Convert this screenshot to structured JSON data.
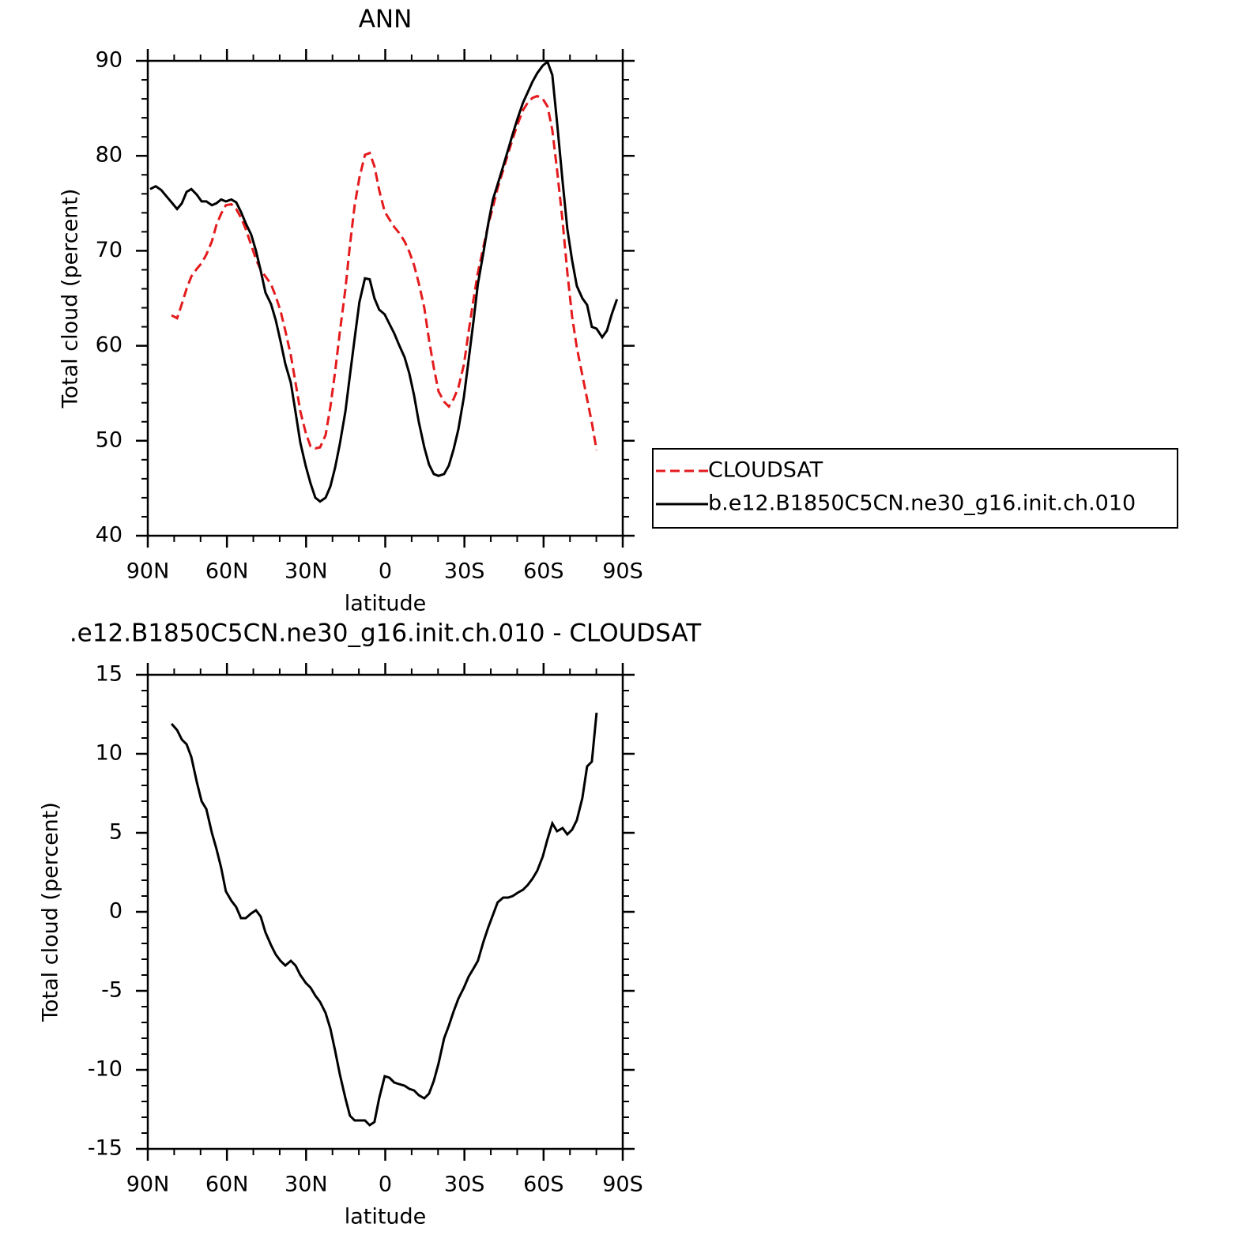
{
  "chart_data": [
    {
      "type": "line",
      "title": "ANN",
      "x_label": "latitude",
      "y_label": "Total cloud (percent)",
      "xlim": [
        90,
        -90
      ],
      "ylim": [
        40,
        90
      ],
      "xticks": [
        {
          "value": 90,
          "label": "90N"
        },
        {
          "value": 60,
          "label": "60N"
        },
        {
          "value": 30,
          "label": "30N"
        },
        0,
        {
          "value": -30,
          "label": "30S"
        },
        {
          "value": -60,
          "label": "60S"
        },
        {
          "value": -90,
          "label": "90S"
        }
      ],
      "yticks": [
        40,
        50,
        60,
        70,
        80,
        90
      ],
      "x_minor_step": 10,
      "y_minor_step": 2,
      "legend": "outside right",
      "series": [
        {
          "name": "CLOUDSAT",
          "color": "#e41a1c",
          "line_style": "dashed",
          "x": [
            81,
            78.9,
            77.1,
            75.3,
            73.5,
            71.4,
            69.6,
            67.8,
            65.7,
            64,
            62.2,
            60.4,
            58.3,
            56.5,
            54.7,
            52.9,
            50.8,
            49,
            47.2,
            45.4,
            43.3,
            41.5,
            39.7,
            37.9,
            35.8,
            34,
            32.2,
            30.1,
            28.3,
            26.5,
            24.7,
            22.6,
            20.8,
            19,
            17.2,
            15.1,
            13.4,
            11.6,
            9.8,
            7.7,
            5.9,
            4.1,
            2.3,
            0.2,
            -1.6,
            -3.4,
            -5.2,
            -7.3,
            -9.1,
            -10.9,
            -12.7,
            -14.8,
            -16.6,
            -18.4,
            -20.2,
            -22.3,
            -24.1,
            -25.9,
            -27.7,
            -29.8,
            -31.6,
            -33.4,
            -35.1,
            -37.2,
            -39,
            -40.8,
            -42.6,
            -44.7,
            -46.5,
            -48.3,
            -50.1,
            -52.2,
            -54,
            -55.8,
            -57.6,
            -59.7,
            -61.5,
            -63.3,
            -65.1,
            -67.2,
            -69,
            -70.8,
            -72.6,
            -74.7,
            -76.5,
            -78.3,
            -80.1
          ],
          "values": [
            63.2,
            62.9,
            64.4,
            66,
            67.3,
            68.1,
            68.7,
            69.6,
            71,
            72.7,
            73.9,
            74.8,
            74.9,
            74.4,
            73.5,
            72.3,
            70.6,
            69.1,
            68,
            67.3,
            66.5,
            65.2,
            63.7,
            61.6,
            59,
            56.1,
            53.1,
            50.8,
            49.4,
            49.2,
            49.3,
            50.6,
            53.6,
            57.3,
            61.5,
            66,
            70.6,
            74.8,
            77.7,
            80.1,
            80.3,
            78.9,
            76.4,
            74.1,
            73.3,
            72.5,
            71.9,
            71,
            69.9,
            68.5,
            66.6,
            64,
            60.6,
            57.7,
            55.2,
            54.1,
            53.6,
            54.4,
            55.6,
            58,
            61.5,
            64.8,
            67.7,
            70.4,
            72.7,
            74.6,
            76.6,
            78.5,
            80.2,
            81.8,
            83.3,
            84.8,
            85.6,
            86.1,
            86.3,
            86,
            85.2,
            82.7,
            78.5,
            73.1,
            67.7,
            63.1,
            59.8,
            56.9,
            54.4,
            51.9,
            49
          ]
        },
        {
          "name": "b.e12.B1850C5CN.ne30_g16.init.ch.010",
          "color": "#000000",
          "line_style": "solid",
          "x": [
            89.1,
            87,
            84.9,
            83.1,
            81,
            78.9,
            77.1,
            75.3,
            73.5,
            71.4,
            69.6,
            67.8,
            65.7,
            64,
            62.2,
            60.4,
            58.3,
            56.5,
            54.7,
            52.9,
            50.8,
            49,
            47.2,
            45.4,
            43.3,
            41.5,
            39.7,
            37.9,
            35.8,
            34,
            32.2,
            30.1,
            28.3,
            26.5,
            24.7,
            22.6,
            20.8,
            19,
            17.2,
            15.1,
            13.4,
            11.6,
            9.8,
            7.7,
            5.9,
            4.1,
            2.3,
            0.2,
            -1.6,
            -3.4,
            -5.2,
            -7.3,
            -9.1,
            -10.9,
            -12.7,
            -14.8,
            -16.6,
            -18.4,
            -20.2,
            -22.3,
            -24.1,
            -25.9,
            -27.7,
            -29.8,
            -31.6,
            -33.4,
            -35.1,
            -37.2,
            -39,
            -40.8,
            -42.6,
            -44.7,
            -46.5,
            -48.3,
            -50.1,
            -52.2,
            -54,
            -55.8,
            -57.6,
            -59.7,
            -61.5,
            -63.3,
            -65.1,
            -67.2,
            -69,
            -70.8,
            -72.6,
            -74.7,
            -76.5,
            -78.3,
            -80.1,
            -82.2,
            -84,
            -85.8,
            -87.8
          ],
          "values": [
            76.5,
            76.8,
            76.4,
            75.8,
            75.1,
            74.4,
            75,
            76.2,
            76.5,
            75.9,
            75.2,
            75.2,
            74.8,
            75,
            75.4,
            75.2,
            75.4,
            75.1,
            74.1,
            72.9,
            71.7,
            70,
            67.9,
            65.6,
            64.4,
            62.7,
            60.5,
            58.1,
            56.1,
            53,
            49.8,
            47.3,
            45.5,
            44,
            43.6,
            44,
            45.2,
            47.2,
            49.7,
            53.1,
            56.9,
            60.8,
            64.6,
            67.1,
            67,
            65,
            63.8,
            63.3,
            62.3,
            61.3,
            60.1,
            58.8,
            57.1,
            54.8,
            52,
            49.3,
            47.5,
            46.5,
            46.3,
            46.5,
            47.4,
            49.1,
            51.2,
            54.6,
            58.5,
            62.5,
            66.5,
            69.8,
            72.8,
            75.4,
            77,
            78.9,
            80.6,
            82.3,
            83.9,
            85.6,
            86.7,
            87.8,
            88.7,
            89.5,
            89.9,
            88.5,
            83.5,
            77.3,
            72.3,
            69,
            66.3,
            65,
            64.3,
            62,
            61.8,
            60.9,
            61.6,
            63.3,
            64.9
          ]
        }
      ]
    },
    {
      "type": "line",
      "title": ".e12.B1850C5CN.ne30_g16.init.ch.010 - CLOUDSAT",
      "x_label": "latitude",
      "y_label": "Total cloud (percent)",
      "xlim": [
        90,
        -90
      ],
      "ylim": [
        -15,
        15
      ],
      "xticks": [
        {
          "value": 90,
          "label": "90N"
        },
        {
          "value": 60,
          "label": "60N"
        },
        {
          "value": 30,
          "label": "30N"
        },
        0,
        {
          "value": -30,
          "label": "30S"
        },
        {
          "value": -60,
          "label": "60S"
        },
        {
          "value": -90,
          "label": "90S"
        }
      ],
      "yticks": [
        -15,
        -10,
        -5,
        0,
        5,
        10,
        15
      ],
      "x_minor_step": 10,
      "y_minor_step": 1,
      "series": [
        {
          "color": "#000000",
          "line_style": "solid",
          "x": [
            81,
            78.9,
            77.1,
            75.3,
            73.5,
            71.4,
            69.6,
            67.8,
            65.7,
            64,
            62.2,
            60.4,
            58.3,
            56.5,
            54.7,
            52.9,
            50.8,
            49,
            47.2,
            45.4,
            43.3,
            41.5,
            39.7,
            37.9,
            35.8,
            34,
            32.2,
            30.1,
            28.3,
            26.5,
            24.7,
            22.6,
            20.8,
            19,
            17.2,
            15.1,
            13.4,
            11.6,
            9.8,
            7.7,
            5.9,
            4.1,
            2.3,
            0.2,
            -1.6,
            -3.4,
            -5.2,
            -7.3,
            -9.1,
            -10.9,
            -12.7,
            -14.8,
            -16.6,
            -18.4,
            -20.2,
            -22.3,
            -24.1,
            -25.9,
            -27.7,
            -29.8,
            -31.6,
            -33.4,
            -35.1,
            -37.2,
            -39,
            -40.8,
            -42.6,
            -44.7,
            -46.5,
            -48.3,
            -50.1,
            -52.2,
            -54,
            -55.8,
            -57.6,
            -59.7,
            -61.5,
            -63.3,
            -65.1,
            -67.2,
            -69,
            -70.8,
            -72.6,
            -74.7,
            -76.5,
            -78.3,
            -80.1
          ],
          "values": [
            11.9,
            11.5,
            10.9,
            10.6,
            9.8,
            8.2,
            7,
            6.5,
            5,
            4,
            2.8,
            1.3,
            0.7,
            0.3,
            -0.4,
            -0.4,
            -0.1,
            0.1,
            -0.3,
            -1.3,
            -2.1,
            -2.7,
            -3.1,
            -3.4,
            -3.1,
            -3.4,
            -4,
            -4.5,
            -4.8,
            -5.3,
            -5.7,
            -6.4,
            -7.4,
            -8.8,
            -10.3,
            -11.8,
            -12.9,
            -13.2,
            -13.2,
            -13.2,
            -13.5,
            -13.3,
            -11.8,
            -10.4,
            -10.5,
            -10.8,
            -10.9,
            -11,
            -11.2,
            -11.3,
            -11.6,
            -11.8,
            -11.5,
            -10.7,
            -9.6,
            -8,
            -7.2,
            -6.3,
            -5.5,
            -4.8,
            -4.1,
            -3.6,
            -3.1,
            -1.9,
            -1,
            -0.2,
            0.6,
            0.9,
            0.9,
            1,
            1.2,
            1.4,
            1.7,
            2.1,
            2.6,
            3.5,
            4.6,
            5.6,
            5.1,
            5.3,
            4.9,
            5.2,
            5.8,
            7.2,
            9.2,
            9.5,
            12.6
          ]
        }
      ]
    }
  ]
}
